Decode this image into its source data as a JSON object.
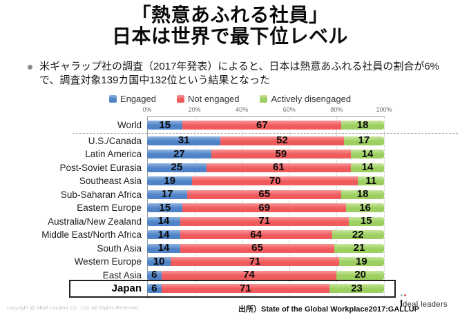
{
  "title": {
    "line1": "「熱意あふれる社員」",
    "line2": "日本は世界で最下位レベル"
  },
  "bullet": {
    "text": "米ギャラップ社の調査（2017年発表）によると、日本は熱意あふれる社員の割合が6%で、調査対象139カ国中132位という結果となった"
  },
  "chart_data": {
    "type": "bar",
    "orientation": "horizontal",
    "stacked": true,
    "xlim": [
      0,
      100
    ],
    "x_ticks": [
      "0%",
      "20%",
      "40%",
      "60%",
      "80%",
      "100%"
    ],
    "grid": "vertical-dotted",
    "legend_position": "top",
    "highlight_category": "Japan",
    "separator_after_category": "World",
    "categories": [
      "World",
      "U.S./Canada",
      "Latin America",
      "Post-Soviet Eurasia",
      "Southeast Asia",
      "Sub-Saharan Africa",
      "Eastern Europe",
      "Australia/New Zealand",
      "Middle East/North Africa",
      "South Asia",
      "Western Europe",
      "East Asia",
      "Japan"
    ],
    "series": [
      {
        "name": "Engaged",
        "color": "#4f82c6",
        "color_light": "#8db2e0",
        "values": [
          15,
          31,
          27,
          25,
          19,
          17,
          15,
          14,
          14,
          14,
          10,
          6,
          6
        ]
      },
      {
        "name": "Not engaged",
        "color": "#ef5a5c",
        "color_light": "#f99597",
        "values": [
          67,
          52,
          59,
          61,
          70,
          65,
          69,
          71,
          64,
          65,
          71,
          74,
          71
        ]
      },
      {
        "name": "Actively disengaged",
        "color": "#9ccf5f",
        "color_light": "#c8e59e",
        "values": [
          18,
          17,
          14,
          14,
          11,
          18,
          16,
          15,
          22,
          21,
          19,
          20,
          23
        ]
      }
    ]
  },
  "footer": {
    "copyright": "copyright @ Ideal Leaders Co., Ltd. All Rights Reserved.",
    "source": "出所）State of the Global Workplace2017:GALLUP",
    "logo": {
      "initial": "I",
      "rest": "deal leaders"
    }
  }
}
